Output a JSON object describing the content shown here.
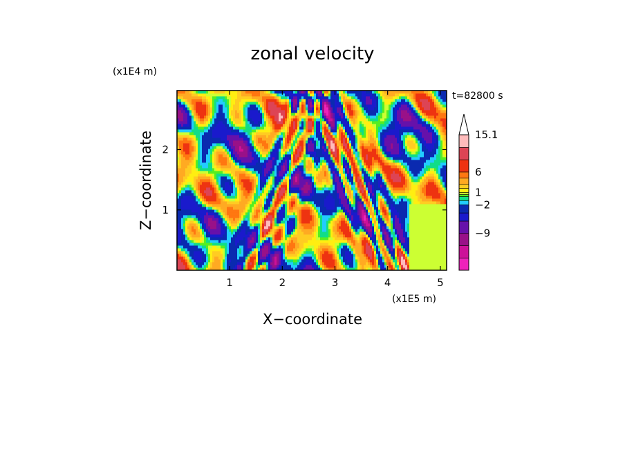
{
  "chart_data": {
    "type": "heatmap",
    "title": "zonal velocity",
    "xlabel": "X−coordinate",
    "ylabel": "Z−coordinate",
    "x_scale_note": "(x1E5 m)",
    "y_scale_note": "(x1E4 m)",
    "time_label": "t=82800 s",
    "xlim": [
      0,
      5.12
    ],
    "ylim": [
      0,
      2.98
    ],
    "x_ticks": [
      "1",
      "2",
      "3",
      "4",
      "5"
    ],
    "x_tick_values": [
      1,
      2,
      3,
      4,
      5
    ],
    "y_ticks": [
      "1",
      "2"
    ],
    "y_tick_values": [
      1,
      2
    ],
    "colorbar": {
      "labels": [
        "15.1",
        "6",
        "1",
        "−2",
        "−9"
      ],
      "label_values": [
        15.1,
        6,
        1,
        -2,
        -9
      ],
      "levels": [
        {
          "min": -18,
          "max": -15,
          "color": "#ee22bb"
        },
        {
          "min": -15,
          "max": -12,
          "color": "#cc1199"
        },
        {
          "min": -12,
          "max": -9,
          "color": "#991188"
        },
        {
          "min": -9,
          "max": -6,
          "color": "#6611aa"
        },
        {
          "min": -6,
          "max": -4,
          "color": "#1a1acc"
        },
        {
          "min": -4,
          "max": -2,
          "color": "#0a2ab0"
        },
        {
          "min": -2,
          "max": -1,
          "color": "#22ccff"
        },
        {
          "min": -1,
          "max": 0,
          "color": "#11dd88"
        },
        {
          "min": 0,
          "max": 0.5,
          "color": "#55ee22"
        },
        {
          "min": 0.5,
          "max": 1,
          "color": "#ccff33"
        },
        {
          "min": 1,
          "max": 2,
          "color": "#ffee11"
        },
        {
          "min": 2,
          "max": 3,
          "color": "#ffcc22"
        },
        {
          "min": 3,
          "max": 4.5,
          "color": "#ffaa22"
        },
        {
          "min": 4.5,
          "max": 6,
          "color": "#ff7711"
        },
        {
          "min": 6,
          "max": 9,
          "color": "#ee3311"
        },
        {
          "min": 9,
          "max": 12,
          "color": "#dd4455"
        },
        {
          "min": 12,
          "max": 15.1,
          "color": "#ffbbbb"
        }
      ],
      "overflow_arrow": "top"
    }
  }
}
